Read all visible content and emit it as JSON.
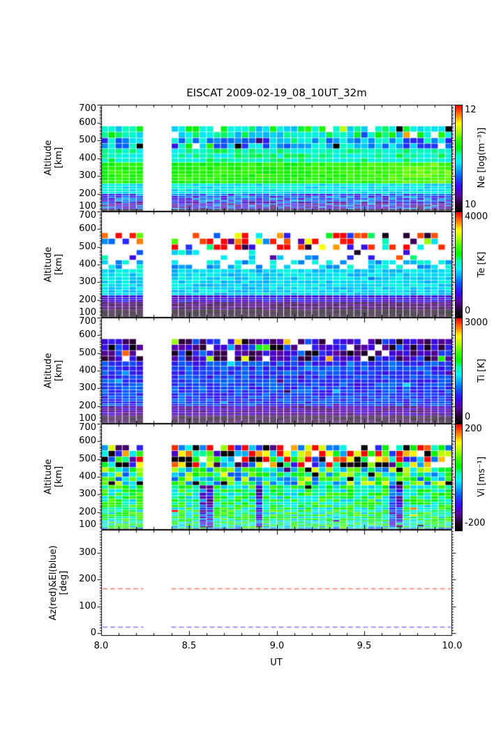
{
  "title": "EISCAT 2009-02-19_08_10UT_32m",
  "chart_data": {
    "type": "heatmap",
    "background": "#ffffff",
    "x": {
      "label": "UT",
      "range": [
        8.0,
        10.0
      ],
      "tick_values": [
        8.0,
        8.5,
        9.0,
        9.5,
        10.0
      ],
      "tick_labels": [
        "8.0",
        "8.5",
        "9.0",
        "9.5",
        "10.0"
      ],
      "minor_step": 0.1,
      "n_slots": 50,
      "gap_slots": [
        6,
        9
      ],
      "gap_ut": [
        8.24,
        8.4
      ]
    },
    "altitude": {
      "label": [
        "Altitude",
        "[km]"
      ],
      "range": [
        100,
        700
      ],
      "ticks": [
        700,
        600,
        500,
        400,
        300,
        200,
        100
      ],
      "minor_step": 10,
      "data_range": [
        100,
        580
      ]
    },
    "colormap": {
      "stops": [
        [
          0.0,
          "#000000"
        ],
        [
          0.08,
          "#2b0038"
        ],
        [
          0.16,
          "#5a00a0"
        ],
        [
          0.22,
          "#4000d8"
        ],
        [
          0.28,
          "#2828ff"
        ],
        [
          0.34,
          "#0064ff"
        ],
        [
          0.41,
          "#00b0ff"
        ],
        [
          0.47,
          "#00f0f0"
        ],
        [
          0.54,
          "#00ffb4"
        ],
        [
          0.6,
          "#00f000"
        ],
        [
          0.68,
          "#40ff00"
        ],
        [
          0.76,
          "#b4ff00"
        ],
        [
          0.83,
          "#ffff00"
        ],
        [
          0.9,
          "#ff9000"
        ],
        [
          0.95,
          "#ff4500"
        ],
        [
          1.0,
          "#ff0000"
        ]
      ]
    },
    "panels": [
      {
        "id": "ne",
        "name": "Ne",
        "unit_label": "Ne [log(m⁻³)]",
        "scale": {
          "min": 10,
          "max": 12,
          "top_label": "12",
          "bottom_label": "10"
        },
        "seed": 101,
        "bands": [
          {
            "alt": [
              100,
              110
            ],
            "base": 10.04,
            "noise": 0.05
          },
          {
            "alt": [
              110,
              152
            ],
            "base": 10.5,
            "noise": 0.3
          },
          {
            "alt": [
              152,
              205
            ],
            "base": 10.62,
            "noise": 0.22
          },
          {
            "alt": [
              205,
              250
            ],
            "base": 10.95,
            "noise": 0.1
          },
          {
            "alt": [
              250,
              380
            ],
            "base": 11.27,
            "noise": 0.08,
            "col_trend": 0.12
          },
          {
            "alt": [
              380,
              440
            ],
            "base": 11.05,
            "noise": 0.12
          },
          {
            "alt": [
              440,
              508
            ],
            "base": 10.78,
            "noise": 0.3,
            "p_white": 0.04,
            "p_black": 0.03,
            "p_rand": 0.03
          },
          {
            "alt": [
              508,
              580
            ],
            "base": 11.05,
            "noise": 0.24,
            "p_white": 0.07,
            "p_black": 0.05,
            "p_rand": 0.05
          }
        ]
      },
      {
        "id": "te",
        "name": "Te",
        "unit_label": "Te [K]",
        "scale": {
          "min": 0,
          "max": 4000,
          "top_label": "4000",
          "bottom_label": "0"
        },
        "seed": 202,
        "bands": [
          {
            "alt": [
              100,
              145
            ],
            "base": 160,
            "noise": 130
          },
          {
            "alt": [
              145,
              185
            ],
            "base": 480,
            "noise": 160
          },
          {
            "alt": [
              185,
              228
            ],
            "base": 950,
            "noise": 220
          },
          {
            "alt": [
              228,
              385
            ],
            "base": 1800,
            "noise": 190,
            "p_rand": 0.02,
            "rand_range": [
              1400,
              2600
            ]
          },
          {
            "alt": [
              385,
              438
            ],
            "base": 1750,
            "noise": 320,
            "p_white": 0.45
          },
          {
            "alt": [
              438,
              492
            ],
            "base": 1600,
            "noise": 700,
            "p_white": 0.72,
            "p_rand": 0.05
          },
          {
            "alt": [
              492,
              580
            ],
            "base": 3900,
            "noise": 420,
            "p_white": 0.5,
            "p_rand": 0.26
          }
        ]
      },
      {
        "id": "ti",
        "name": "Ti",
        "unit_label": "Ti [K]",
        "scale": {
          "min": 0,
          "max": 3000,
          "top_label": "3000",
          "bottom_label": "0"
        },
        "seed": 303,
        "bands": [
          {
            "alt": [
              100,
              150
            ],
            "base": 220,
            "noise": 150
          },
          {
            "alt": [
              150,
              205
            ],
            "base": 520,
            "noise": 190
          },
          {
            "alt": [
              205,
              440
            ],
            "base": 900,
            "noise": 170,
            "p_rand": 0.04,
            "rand_range": [
              300,
              1400
            ]
          },
          {
            "alt": [
              440,
              580
            ],
            "base": 560,
            "noise": 420,
            "p_white": 0.1,
            "p_rand": 0.13,
            "p_black": 0.04
          }
        ]
      },
      {
        "id": "vi",
        "name": "Vi",
        "unit_label": "Vi [ms⁻¹]",
        "scale": {
          "min": -200,
          "max": 200,
          "top_label": "200",
          "bottom_label": "-200"
        },
        "seed": 404,
        "streaks": {
          "cols": [
            14,
            15,
            22,
            41,
            42
          ],
          "alt": [
            115,
            360
          ],
          "offset": -120
        },
        "bands": [
          {
            "alt": [
              100,
              108
            ],
            "base": -150,
            "noise": 90
          },
          {
            "alt": [
              108,
              120
            ],
            "base": 0,
            "noise": 80
          },
          {
            "alt": [
              120,
              355
            ],
            "base": 25,
            "noise": 55,
            "p_rand": 0.02,
            "rand_range": [
              -260,
              260
            ]
          },
          {
            "alt": [
              355,
              465
            ],
            "base": 30,
            "noise": 100,
            "p_black": 0.06,
            "p_rand": 0.1,
            "rand_range": [
              -260,
              260
            ]
          },
          {
            "alt": [
              465,
              580
            ],
            "base": 0,
            "noise": 280,
            "p_white": 0.1,
            "p_rand": 0.08
          }
        ]
      },
      {
        "id": "azel",
        "type": "lines",
        "ylabel": [
          "Az(red)&El(blue)",
          "[deg]"
        ],
        "ylim": [
          -11,
          386
        ],
        "y_ticks": [
          300,
          200,
          100,
          0
        ],
        "y_minor_step": 10,
        "series": [
          {
            "name": "Az",
            "value_deg": 167,
            "color": "#ff7a6e",
            "style": "dashed"
          },
          {
            "name": "El",
            "value_deg": 24,
            "color": "#837aff",
            "style": "dashed"
          }
        ]
      }
    ]
  }
}
